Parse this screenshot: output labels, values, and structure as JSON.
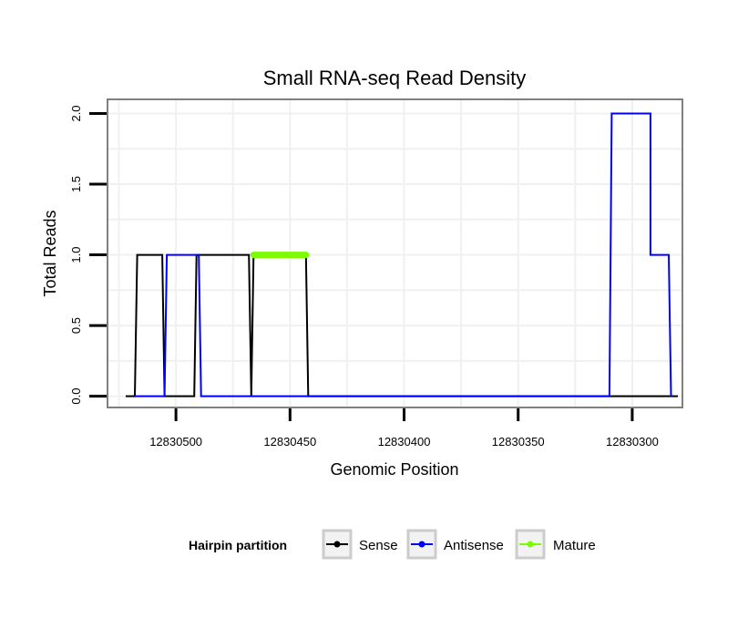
{
  "chart_data": {
    "type": "line",
    "title": "Small RNA-seq Read Density",
    "xlabel": "Genomic Position",
    "ylabel": "Total Reads",
    "x_reversed": true,
    "xlim": [
      12830530,
      12830278
    ],
    "ylim": [
      -0.08,
      2.1
    ],
    "x_ticks": [
      12830500,
      12830450,
      12830400,
      12830350,
      12830300
    ],
    "x_tick_labels": [
      "12830500",
      "12830450",
      "12830400",
      "12830350",
      "12830300"
    ],
    "y_ticks": [
      0,
      0.5,
      1,
      1.5,
      2
    ],
    "y_tick_labels": [
      "0.0",
      "0.5",
      "1.0",
      "1.5",
      "2.0"
    ],
    "grid": true,
    "legend": {
      "title": "Hairpin partition",
      "position": "bottom",
      "entries": [
        "Sense",
        "Antisense",
        "Mature"
      ]
    },
    "series": [
      {
        "name": "Sense",
        "color": "#000000",
        "width": 2,
        "x": [
          12830522,
          12830518,
          12830517,
          12830506,
          12830505,
          12830493,
          12830492,
          12830492,
          12830491,
          12830468,
          12830467,
          12830467,
          12830466,
          12830443,
          12830442,
          12830442,
          12830441,
          12830280
        ],
        "y": [
          0,
          0,
          1,
          1,
          0,
          0,
          0,
          0,
          1,
          1,
          0,
          0,
          1,
          1,
          0,
          0,
          0,
          0
        ]
      },
      {
        "name": "Antisense",
        "color": "#0000ff",
        "width": 2,
        "x": [
          12830518,
          12830505,
          12830504,
          12830490,
          12830489,
          12830468,
          12830468,
          12830442,
          12830442,
          12830310,
          12830309,
          12830292,
          12830292,
          12830284,
          12830283
        ],
        "y": [
          0,
          0,
          1,
          1,
          0,
          0,
          0,
          0,
          0,
          0,
          2,
          2,
          1,
          1,
          0
        ]
      },
      {
        "name": "Mature",
        "color": "#7cfc00",
        "width": 7,
        "x": [
          12830466,
          12830443
        ],
        "y": [
          1,
          1
        ]
      }
    ]
  }
}
